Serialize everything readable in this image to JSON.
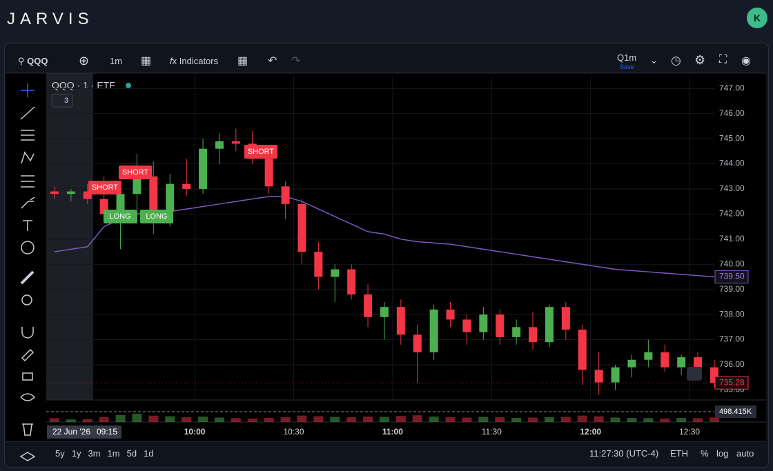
{
  "header": {
    "brand": "JARVIS",
    "avatar": "K"
  },
  "toolbar": {
    "symbol": "QQQ",
    "interval": "1m",
    "indicators": "Indicators",
    "layout": "Q1m",
    "save": "Save"
  },
  "chart_data": {
    "type": "candlestick",
    "title": "QQQ · 1 · ETF",
    "indicator_count": "3",
    "up_color": "#4caf50",
    "down_color": "#f23645",
    "x": [
      null,
      null,
      null,
      null,
      null,
      null,
      null,
      null,
      null,
      "10:00",
      null,
      null,
      null,
      null,
      null,
      "10:30",
      null,
      null,
      null,
      null,
      null,
      "11:00",
      null,
      null,
      null,
      null,
      null,
      "11:30",
      null,
      null,
      null,
      null,
      null,
      "12:00",
      null,
      null,
      null,
      null,
      null,
      "12:30",
      null
    ],
    "candles": [
      {
        "open": 742.9,
        "high": 743.1,
        "low": 742.6,
        "close": 742.8
      },
      {
        "open": 742.8,
        "high": 743.0,
        "low": 742.5,
        "close": 742.9
      },
      {
        "open": 742.9,
        "high": 743.2,
        "low": 742.4,
        "close": 742.6
      },
      {
        "open": 742.6,
        "high": 743.5,
        "low": 741.7,
        "close": 742.0
      },
      {
        "open": 742.0,
        "high": 743.3,
        "low": 740.6,
        "close": 742.8
      },
      {
        "open": 742.8,
        "high": 744.4,
        "low": 741.6,
        "close": 743.5
      },
      {
        "open": 743.5,
        "high": 744.1,
        "low": 741.2,
        "close": 742.1
      },
      {
        "open": 742.1,
        "high": 743.6,
        "low": 741.5,
        "close": 743.2
      },
      {
        "open": 743.2,
        "high": 744.2,
        "low": 742.7,
        "close": 743.0
      },
      {
        "open": 743.0,
        "high": 745.0,
        "low": 742.8,
        "close": 744.6
      },
      {
        "open": 744.6,
        "high": 745.2,
        "low": 744.0,
        "close": 744.9
      },
      {
        "open": 744.9,
        "high": 745.4,
        "low": 744.5,
        "close": 744.8
      },
      {
        "open": 744.8,
        "high": 745.3,
        "low": 744.0,
        "close": 744.2
      },
      {
        "open": 744.2,
        "high": 744.5,
        "low": 742.8,
        "close": 743.1
      },
      {
        "open": 743.1,
        "high": 743.3,
        "low": 741.8,
        "close": 742.4
      },
      {
        "open": 742.4,
        "high": 742.6,
        "low": 740.0,
        "close": 740.5
      },
      {
        "open": 740.5,
        "high": 740.9,
        "low": 739.0,
        "close": 739.5
      },
      {
        "open": 739.5,
        "high": 740.0,
        "low": 738.5,
        "close": 739.8
      },
      {
        "open": 739.8,
        "high": 740.0,
        "low": 738.6,
        "close": 738.8
      },
      {
        "open": 738.8,
        "high": 739.2,
        "low": 737.5,
        "close": 737.9
      },
      {
        "open": 737.9,
        "high": 738.5,
        "low": 737.0,
        "close": 738.3
      },
      {
        "open": 738.3,
        "high": 738.6,
        "low": 736.8,
        "close": 737.2
      },
      {
        "open": 737.2,
        "high": 737.6,
        "low": 735.3,
        "close": 736.5
      },
      {
        "open": 736.5,
        "high": 738.4,
        "low": 736.2,
        "close": 738.2
      },
      {
        "open": 738.2,
        "high": 738.5,
        "low": 737.5,
        "close": 737.8
      },
      {
        "open": 737.8,
        "high": 738.0,
        "low": 736.8,
        "close": 737.3
      },
      {
        "open": 737.3,
        "high": 738.3,
        "low": 737.0,
        "close": 738.0
      },
      {
        "open": 738.0,
        "high": 738.2,
        "low": 736.8,
        "close": 737.1
      },
      {
        "open": 737.1,
        "high": 737.8,
        "low": 736.8,
        "close": 737.5
      },
      {
        "open": 737.5,
        "high": 738.1,
        "low": 736.6,
        "close": 736.9
      },
      {
        "open": 736.9,
        "high": 738.4,
        "low": 736.7,
        "close": 738.3
      },
      {
        "open": 738.3,
        "high": 738.5,
        "low": 737.0,
        "close": 737.4
      },
      {
        "open": 737.4,
        "high": 737.6,
        "low": 735.2,
        "close": 735.8
      },
      {
        "open": 735.8,
        "high": 736.5,
        "low": 734.8,
        "close": 735.3
      },
      {
        "open": 735.3,
        "high": 736.0,
        "low": 735.0,
        "close": 735.9
      },
      {
        "open": 735.9,
        "high": 736.4,
        "low": 735.5,
        "close": 736.2
      },
      {
        "open": 736.2,
        "high": 737.0,
        "low": 735.9,
        "close": 736.5
      },
      {
        "open": 736.5,
        "high": 736.8,
        "low": 735.7,
        "close": 735.9
      },
      {
        "open": 735.9,
        "high": 736.4,
        "low": 735.6,
        "close": 736.3
      },
      {
        "open": 736.3,
        "high": 736.5,
        "low": 735.5,
        "close": 735.9
      },
      {
        "open": 735.9,
        "high": 736.2,
        "low": 735.1,
        "close": 735.28
      }
    ],
    "last_price_label": "735.28",
    "vwap": {
      "color": "#7e57c2",
      "values": [
        740.5,
        740.6,
        740.7,
        741.5,
        741.8,
        742.0,
        742.1,
        742.1,
        742.2,
        742.3,
        742.4,
        742.5,
        742.6,
        742.7,
        742.7,
        742.5,
        742.2,
        741.9,
        741.6,
        741.3,
        741.2,
        741.0,
        740.9,
        740.85,
        740.8,
        740.7,
        740.6,
        740.5,
        740.4,
        740.3,
        740.2,
        740.1,
        740.0,
        739.9,
        739.8,
        739.75,
        739.7,
        739.65,
        739.6,
        739.55,
        739.5
      ],
      "value_label": "739.50"
    },
    "signals": [
      "SHORT",
      "SHORT",
      "LONG",
      "LONG",
      "SHORT"
    ],
    "volume": [
      120,
      80,
      90,
      160,
      220,
      260,
      200,
      180,
      150,
      170,
      140,
      120,
      110,
      130,
      150,
      200,
      180,
      160,
      150,
      170,
      160,
      190,
      210,
      170,
      150,
      140,
      160,
      150,
      130,
      140,
      150,
      160,
      200,
      180,
      140,
      130,
      120,
      110,
      130,
      120,
      140
    ],
    "volume_lim": [
      0,
      600
    ],
    "volume_label": "498.415K",
    "ylim": [
      734.6,
      747.5
    ],
    "yticks": [
      {
        "value": 735,
        "label": "735.00"
      },
      {
        "value": 736,
        "label": "736.00"
      },
      {
        "value": 737,
        "label": "737.00"
      },
      {
        "value": 738,
        "label": "738.00"
      },
      {
        "value": 739,
        "label": "739.00"
      },
      {
        "value": 740,
        "label": "740.00"
      },
      {
        "value": 741,
        "label": "741.00"
      },
      {
        "value": 742,
        "label": "742.00"
      },
      {
        "value": 743,
        "label": "743.00"
      },
      {
        "value": 744,
        "label": "744.00"
      },
      {
        "value": 745,
        "label": "745.00"
      },
      {
        "value": 746,
        "label": "746.00"
      },
      {
        "value": 747,
        "label": "747.00"
      }
    ],
    "grid": true,
    "cursor": {
      "date": "22 Jun '26",
      "time": "09:15"
    }
  },
  "footer": {
    "ranges": [
      "5y",
      "1y",
      "3m",
      "1m",
      "5d",
      "1d"
    ],
    "clock": "11:27:30 (UTC-4)",
    "session": "ETH",
    "percent": "%",
    "log": "log",
    "auto": "auto"
  }
}
